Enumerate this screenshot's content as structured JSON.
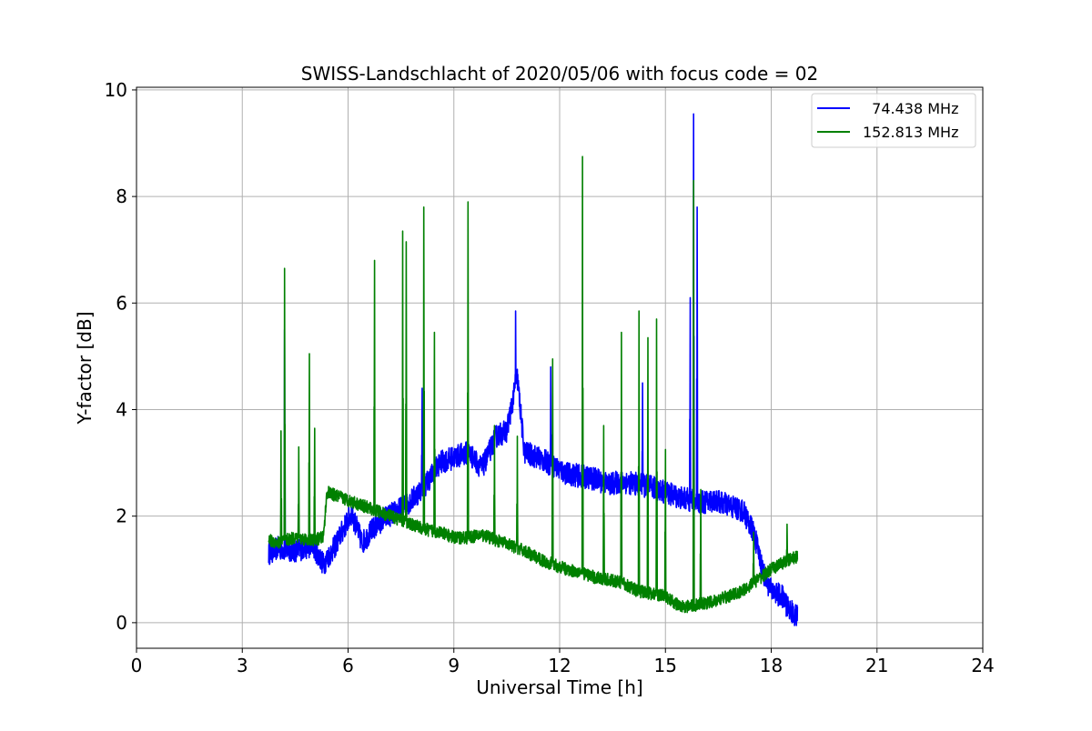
{
  "chart_data": {
    "type": "line",
    "title": "SWISS-Landschlacht of 2020/05/06 with focus code = 02",
    "xlabel": "Universal Time [h]",
    "ylabel": "Y-factor [dB]",
    "xlim": [
      0,
      24
    ],
    "ylim": [
      -0.48,
      10.05
    ],
    "xticks": [
      0,
      3,
      6,
      9,
      12,
      15,
      18,
      21,
      24
    ],
    "yticks": [
      0,
      2,
      4,
      6,
      8,
      10
    ],
    "grid": true,
    "legend_position": "top-right",
    "series": [
      {
        "name": "  74.438 MHz",
        "color": "#0000ff",
        "x": [
          3.75,
          4.0,
          4.5,
          5.0,
          5.3,
          5.6,
          5.9,
          6.1,
          6.4,
          6.7,
          7.0,
          7.4,
          7.8,
          8.2,
          8.6,
          9.0,
          9.4,
          9.8,
          10.2,
          10.5,
          10.8,
          11.0,
          11.4,
          11.8,
          12.2,
          12.6,
          13.0,
          13.4,
          13.8,
          14.2,
          14.6,
          15.0,
          15.4,
          15.7,
          16.0,
          16.4,
          16.8,
          17.2,
          17.5,
          17.8,
          18.0,
          18.3,
          18.5,
          18.75
        ],
        "y": [
          1.3,
          1.4,
          1.35,
          1.45,
          1.1,
          1.4,
          1.8,
          2.05,
          1.5,
          1.75,
          1.95,
          2.1,
          2.3,
          2.6,
          3.0,
          3.1,
          3.2,
          2.9,
          3.5,
          3.6,
          4.6,
          3.2,
          3.1,
          2.95,
          2.8,
          2.75,
          2.7,
          2.6,
          2.65,
          2.6,
          2.55,
          2.45,
          2.35,
          2.3,
          2.25,
          2.3,
          2.2,
          2.1,
          1.7,
          0.9,
          0.6,
          0.5,
          0.25,
          0.1
        ],
        "spikes": [
          [
            4.2,
            5.5
          ],
          [
            8.1,
            4.4
          ],
          [
            10.75,
            5.85
          ],
          [
            11.75,
            4.8
          ],
          [
            14.35,
            4.5
          ],
          [
            15.7,
            6.1
          ],
          [
            15.8,
            9.55
          ],
          [
            15.9,
            7.8
          ]
        ]
      },
      {
        "name": "152.813 MHz",
        "color": "#008000",
        "x": [
          3.75,
          4.0,
          4.5,
          5.0,
          5.3,
          5.4,
          5.8,
          6.2,
          6.6,
          7.0,
          7.4,
          7.8,
          8.2,
          8.6,
          9.0,
          9.4,
          9.8,
          10.2,
          10.6,
          11.0,
          11.4,
          11.8,
          12.2,
          12.6,
          13.0,
          13.4,
          13.8,
          14.2,
          14.6,
          15.0,
          15.3,
          15.6,
          16.0,
          16.4,
          16.8,
          17.2,
          17.6,
          18.0,
          18.4,
          18.75
        ],
        "y": [
          1.55,
          1.5,
          1.6,
          1.55,
          1.6,
          2.45,
          2.35,
          2.25,
          2.15,
          2.05,
          1.95,
          1.85,
          1.75,
          1.7,
          1.6,
          1.6,
          1.65,
          1.55,
          1.45,
          1.35,
          1.2,
          1.1,
          1.0,
          0.95,
          0.85,
          0.8,
          0.75,
          0.6,
          0.55,
          0.5,
          0.35,
          0.3,
          0.35,
          0.4,
          0.5,
          0.6,
          0.8,
          1.0,
          1.15,
          1.25
        ],
        "spikes": [
          [
            4.2,
            6.65
          ],
          [
            4.1,
            3.6
          ],
          [
            4.6,
            3.3
          ],
          [
            4.9,
            5.05
          ],
          [
            5.05,
            3.65
          ],
          [
            6.75,
            6.8
          ],
          [
            7.55,
            7.35
          ],
          [
            7.65,
            7.15
          ],
          [
            8.15,
            7.8
          ],
          [
            8.45,
            5.45
          ],
          [
            9.4,
            7.9
          ],
          [
            10.15,
            3.7
          ],
          [
            10.8,
            3.5
          ],
          [
            11.8,
            4.95
          ],
          [
            12.65,
            8.75
          ],
          [
            13.25,
            3.7
          ],
          [
            13.75,
            5.45
          ],
          [
            14.25,
            5.85
          ],
          [
            14.5,
            5.35
          ],
          [
            14.75,
            5.7
          ],
          [
            15.0,
            3.25
          ],
          [
            15.8,
            8.3
          ],
          [
            16.0,
            2.5
          ],
          [
            17.5,
            1.7
          ],
          [
            18.45,
            1.85
          ]
        ]
      }
    ]
  }
}
